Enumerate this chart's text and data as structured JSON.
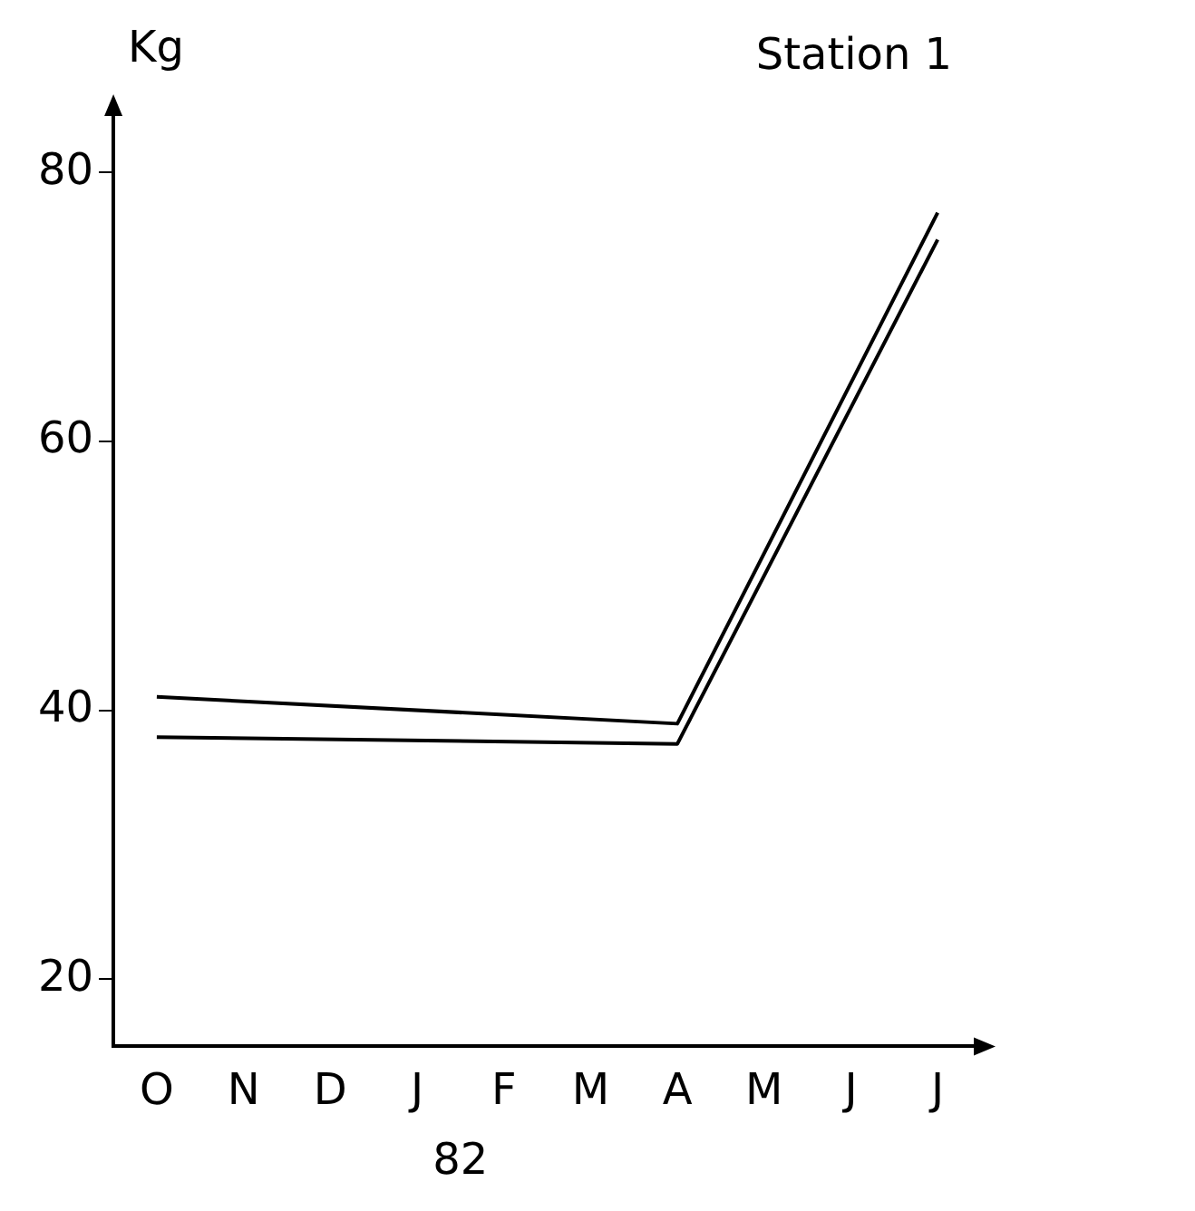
{
  "chart_data": {
    "type": "line",
    "title": "Station 1",
    "ylabel": "Kg",
    "xlabel": "82",
    "categories": [
      "O",
      "N",
      "D",
      "J",
      "F",
      "M",
      "A",
      "M",
      "J",
      "J"
    ],
    "series": [
      {
        "color": "#000000",
        "values": [
          41,
          null,
          null,
          null,
          null,
          null,
          39,
          null,
          null,
          77
        ]
      },
      {
        "color": "#000000",
        "values": [
          38,
          null,
          null,
          null,
          null,
          null,
          37.5,
          null,
          null,
          75
        ]
      }
    ],
    "ylim": [
      15,
      85
    ],
    "yticks": [
      20,
      40,
      60,
      80
    ],
    "grid": false,
    "legend": false,
    "marker": "none",
    "line_style": "solid"
  }
}
